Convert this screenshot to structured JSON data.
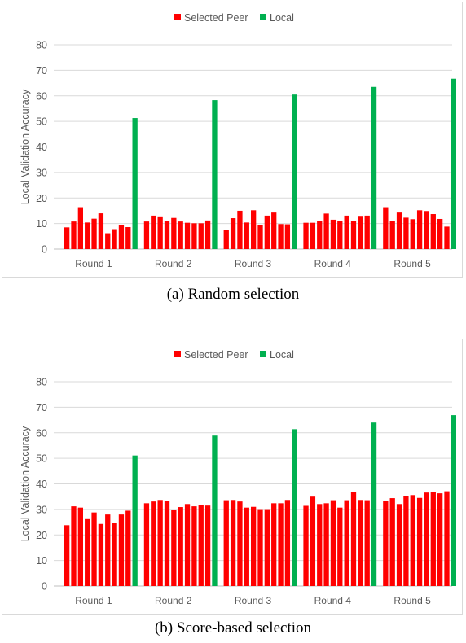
{
  "chart_data": [
    {
      "type": "bar",
      "caption": "(a) Random selection",
      "ylabel": "Local Validation Accuracy",
      "ylim": [
        0,
        80
      ],
      "yticks": [
        0,
        10,
        20,
        30,
        40,
        50,
        60,
        70,
        80
      ],
      "grid": true,
      "legend_position": "top",
      "categories": [
        "Round 1",
        "Round 2",
        "Round 3",
        "Round 4",
        "Round 5"
      ],
      "series": [
        {
          "name": "Selected Peer",
          "color": "#ff0000",
          "values": [
            [
              8.5,
              10.8,
              16.4,
              10.4,
              11.9,
              14.0,
              6.2,
              7.8,
              9.4,
              8.6
            ],
            [
              10.8,
              13.1,
              12.8,
              10.9,
              12.2,
              10.8,
              10.3,
              10.1,
              10.1,
              11.2
            ],
            [
              7.6,
              12.1,
              15.0,
              10.4,
              15.2,
              9.5,
              13.1,
              14.3,
              9.8,
              9.7
            ],
            [
              10.3,
              10.3,
              11.0,
              13.9,
              11.5,
              10.9,
              13.1,
              11.0,
              13.0,
              13.1
            ],
            [
              16.4,
              11.1,
              14.3,
              12.3,
              11.7,
              15.2,
              14.9,
              13.7,
              11.8,
              8.8
            ]
          ]
        },
        {
          "name": "Local",
          "color": "#00b050",
          "values": [
            51.3,
            58.3,
            60.5,
            63.5,
            66.7
          ]
        }
      ]
    },
    {
      "type": "bar",
      "caption": "(b) Score-based selection",
      "ylabel": "Local Validation Accuracy",
      "ylim": [
        0,
        80
      ],
      "yticks": [
        0,
        10,
        20,
        30,
        40,
        50,
        60,
        70,
        80
      ],
      "grid": true,
      "legend_position": "top",
      "categories": [
        "Round 1",
        "Round 2",
        "Round 3",
        "Round 4",
        "Round 5"
      ],
      "series": [
        {
          "name": "Selected Peer",
          "color": "#ff0000",
          "values": [
            [
              23.8,
              31.2,
              30.7,
              26.2,
              28.8,
              24.3,
              28.0,
              24.8,
              28.0,
              29.5
            ],
            [
              32.4,
              33.1,
              33.7,
              33.3,
              29.7,
              30.9,
              32.1,
              31.2,
              31.7,
              31.5
            ],
            [
              33.6,
              33.7,
              33.1,
              30.7,
              31.0,
              30.1,
              30.1,
              32.4,
              32.4,
              33.7
            ],
            [
              31.4,
              35.0,
              32.1,
              32.4,
              33.6,
              30.7,
              33.6,
              36.8,
              33.7,
              33.6
            ],
            [
              33.4,
              34.4,
              32.1,
              35.2,
              35.6,
              34.5,
              36.6,
              36.9,
              36.3,
              37.1
            ]
          ]
        },
        {
          "name": "Local",
          "color": "#00b050",
          "values": [
            51.1,
            58.9,
            61.4,
            64.0,
            66.9
          ]
        }
      ]
    }
  ]
}
